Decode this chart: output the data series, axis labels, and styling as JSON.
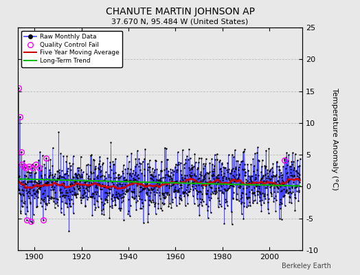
{
  "title": "CHANUTE MARTIN JOHNSON AP",
  "subtitle": "37.670 N, 95.484 W (United States)",
  "ylabel": "Temperature Anomaly (°C)",
  "credit": "Berkeley Earth",
  "xlim": [
    1893,
    2014
  ],
  "ylim": [
    -10,
    25
  ],
  "yticks": [
    -10,
    -5,
    0,
    5,
    10,
    15,
    20,
    25
  ],
  "xticks": [
    1900,
    1920,
    1940,
    1960,
    1980,
    2000
  ],
  "bg_color": "#e8e8e8",
  "plot_bg_color": "#e8e8e8",
  "raw_line_color": "#4444ff",
  "raw_dot_color": "#000000",
  "qc_fail_color": "#ff00ff",
  "moving_avg_color": "#cc0000",
  "trend_color": "#00bb00",
  "start_year": 1893,
  "end_year": 2013,
  "seed": 42,
  "noise_std": 2.2,
  "qc_indices_early": [
    3,
    10,
    18,
    22,
    30,
    38,
    45,
    55,
    65,
    75,
    90,
    110,
    130,
    145
  ],
  "qc_values_early": [
    15.5,
    11.0,
    5.5,
    3.5,
    3.2,
    3.0,
    -5.3,
    3.2,
    -5.5,
    3.0,
    3.5,
    3.0,
    -5.2,
    4.5
  ],
  "title_fontsize": 10,
  "subtitle_fontsize": 8,
  "tick_labelsize": 8,
  "legend_fontsize": 6.5
}
